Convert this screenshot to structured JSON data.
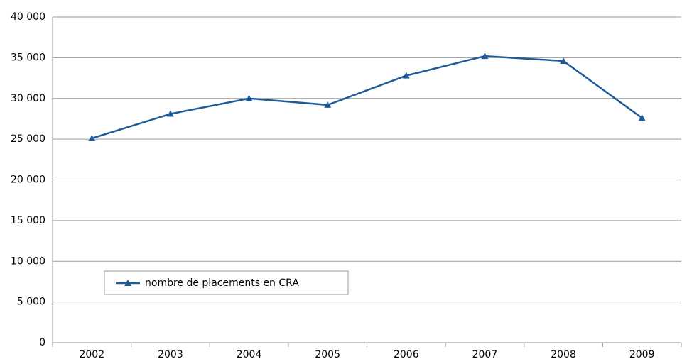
{
  "chart_data": {
    "type": "line",
    "categories": [
      "2002",
      "2003",
      "2004",
      "2005",
      "2006",
      "2007",
      "2008",
      "2009"
    ],
    "series": [
      {
        "name": "nombre de placements en CRA",
        "color": "#1f5b96",
        "values": [
          25100,
          28100,
          30000,
          29200,
          32800,
          35200,
          34600,
          27600
        ]
      }
    ],
    "ylim": [
      0,
      40000
    ],
    "yticks": [
      0,
      {
        "value": 5000,
        "label": "5 000"
      },
      {
        "value": 10000,
        "label": "10 000"
      },
      {
        "value": 15000,
        "label": "15 000"
      },
      {
        "value": 20000,
        "label": "20 000"
      },
      {
        "value": 25000,
        "label": "25 000"
      },
      {
        "value": 30000,
        "label": "30 000"
      },
      {
        "value": 35000,
        "label": "35 000"
      },
      {
        "value": 40000,
        "label": "40 000"
      }
    ],
    "grid": true,
    "legend": "bottom-left"
  }
}
